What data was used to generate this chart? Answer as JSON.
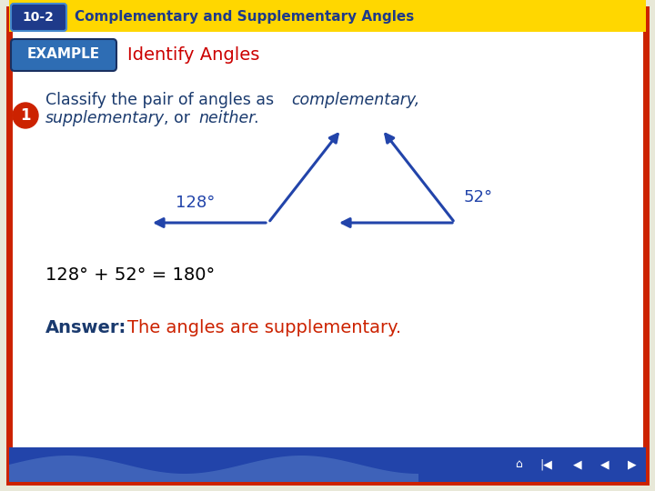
{
  "title_bar_color": "#FFD700",
  "title_bar_text": "Complementary and Supplementary Angles",
  "title_bar_label": "10-2",
  "title_bar_label_bg": "#1E3A8A",
  "example_label_bg": "#2E6DB4",
  "heading": "Identify Angles",
  "heading_color": "#CC0000",
  "slide_bg": "#FFFFFF",
  "outer_bg": "#E8E8D8",
  "border_color": "#CC2200",
  "question_color": "#1A3A6E",
  "angle_color": "#2244AA",
  "equation_text": "128° + 52° = 180°",
  "equation_color": "#000000",
  "answer_label": "Answer:",
  "answer_label_color": "#1A3A6E",
  "answer_text": "The angles are supplementary.",
  "answer_text_color": "#CC2200",
  "circle_num_color": "#CC2200",
  "bottom_bar_color": "#2244AA"
}
